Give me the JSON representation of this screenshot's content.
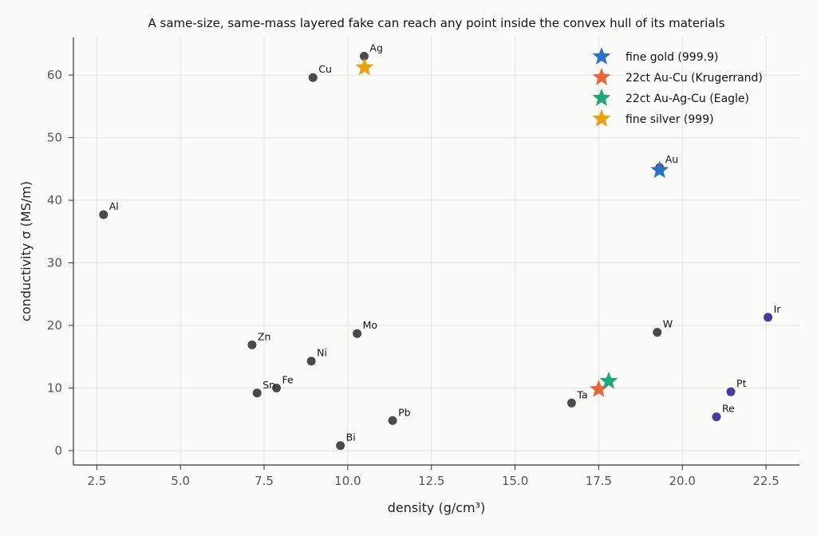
{
  "chart_data": {
    "type": "scatter",
    "title": "A same-size, same-mass layered fake can reach any point inside the convex hull of its materials",
    "xlabel": "density (g/cm³)",
    "ylabel": "conductivity σ (MS/m)",
    "xlim": [
      1.8,
      23.5
    ],
    "ylim": [
      -2.3,
      66
    ],
    "xticks": [
      2.5,
      5.0,
      7.5,
      10.0,
      12.5,
      15.0,
      17.5,
      20.0,
      22.5
    ],
    "xtick_labels": [
      "2.5",
      "5.0",
      "7.5",
      "10.0",
      "12.5",
      "15.0",
      "17.5",
      "20.0",
      "22.5"
    ],
    "yticks": [
      0,
      10,
      20,
      30,
      40,
      50,
      60
    ],
    "ytick_labels": [
      "0",
      "10",
      "20",
      "30",
      "40",
      "50",
      "60"
    ],
    "grid": true,
    "legend_position": "top-right",
    "point_color": "#4a4a4a",
    "dense_point_color": "#4b3aa0",
    "points": [
      {
        "label": "Ag",
        "x": 10.49,
        "y": 63.0
      },
      {
        "label": "Cu",
        "x": 8.96,
        "y": 59.6
      },
      {
        "label": "Au",
        "x": 19.32,
        "y": 45.2
      },
      {
        "label": "Al",
        "x": 2.7,
        "y": 37.7
      },
      {
        "label": "Ir",
        "x": 22.56,
        "y": 21.3,
        "dense": true
      },
      {
        "label": "W",
        "x": 19.25,
        "y": 18.9
      },
      {
        "label": "Mo",
        "x": 10.28,
        "y": 18.7
      },
      {
        "label": "Zn",
        "x": 7.14,
        "y": 16.9
      },
      {
        "label": "Ni",
        "x": 8.91,
        "y": 14.3
      },
      {
        "label": "Fe",
        "x": 7.87,
        "y": 10.0
      },
      {
        "label": "Sn",
        "x": 7.29,
        "y": 9.2
      },
      {
        "label": "Pt",
        "x": 21.45,
        "y": 9.4,
        "dense": true
      },
      {
        "label": "Ta",
        "x": 16.69,
        "y": 7.6
      },
      {
        "label": "Pb",
        "x": 11.34,
        "y": 4.8
      },
      {
        "label": "Re",
        "x": 21.02,
        "y": 5.4,
        "dense": true
      },
      {
        "label": "Bi",
        "x": 9.78,
        "y": 0.8
      }
    ],
    "stars": [
      {
        "name": "fine gold (999.9)",
        "x": 19.32,
        "y": 44.8,
        "color": "#2b72c9"
      },
      {
        "name": "22ct Au-Cu (Krugerrand)",
        "x": 17.5,
        "y": 9.8,
        "color": "#e8673a"
      },
      {
        "name": "22ct Au-Ag-Cu (Eagle)",
        "x": 17.8,
        "y": 11.1,
        "color": "#1fa67a"
      },
      {
        "name": "fine silver (999)",
        "x": 10.5,
        "y": 61.2,
        "color": "#e8a20f"
      }
    ]
  }
}
